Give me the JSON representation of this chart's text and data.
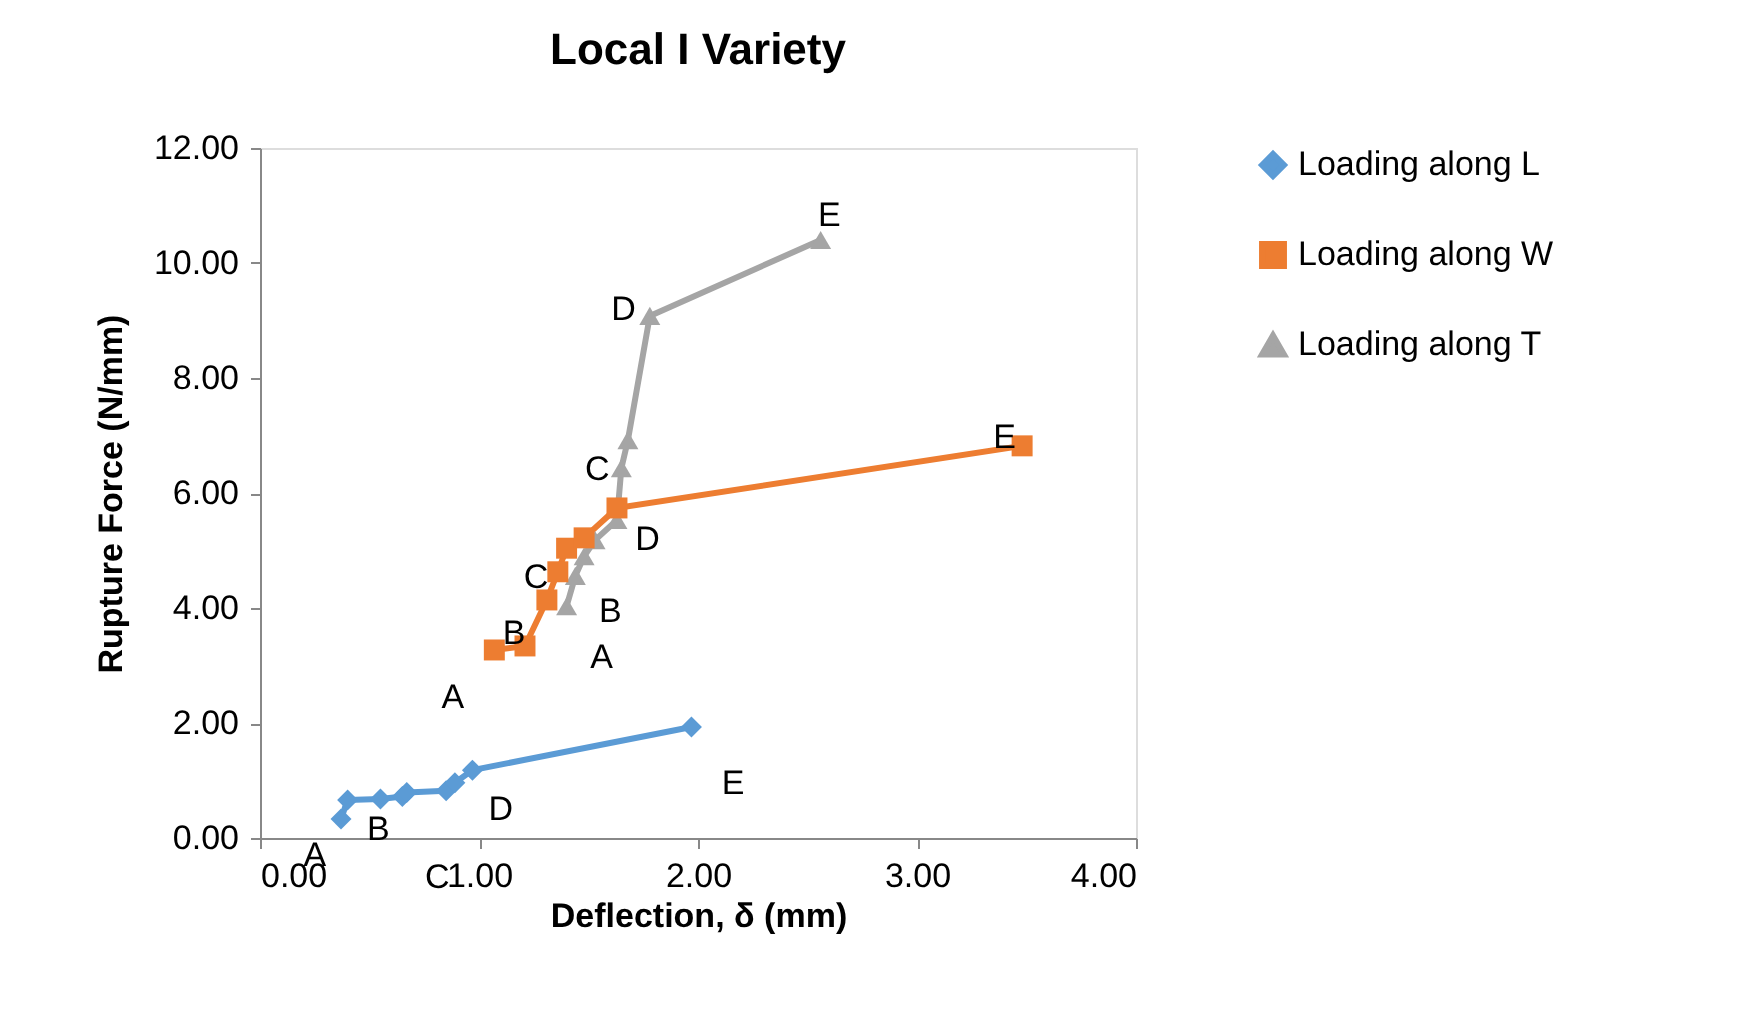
{
  "chart_data": {
    "type": "line",
    "title": "Local I Variety",
    "xlabel": "Deflection, δ (mm)",
    "ylabel": "Rupture Force (N/mm)",
    "xlim": [
      0,
      4
    ],
    "ylim": [
      0,
      12
    ],
    "xticks": [
      {
        "value": 0,
        "label": "0.00"
      },
      {
        "value": 1,
        "label": "1.00"
      },
      {
        "value": 2,
        "label": "2.00"
      },
      {
        "value": 3,
        "label": "3.00"
      },
      {
        "value": 4,
        "label": "4.00"
      }
    ],
    "yticks": [
      {
        "value": 0,
        "label": "0.00"
      },
      {
        "value": 2,
        "label": "2.00"
      },
      {
        "value": 4,
        "label": "4.00"
      },
      {
        "value": 6,
        "label": "6.00"
      },
      {
        "value": 8,
        "label": "8.00"
      },
      {
        "value": 10,
        "label": "10.00"
      },
      {
        "value": 12,
        "label": "12.00"
      }
    ],
    "grid": false,
    "legend": "right",
    "line_style": "solid",
    "series": [
      {
        "name": "Loading along L",
        "color": "#5b9bd5",
        "marker": "diamond",
        "x": [
          0.37,
          0.4,
          0.55,
          0.65,
          0.67,
          0.85,
          0.89,
          0.97,
          1.97
        ],
        "values": [
          0.33,
          0.66,
          0.68,
          0.72,
          0.79,
          0.82,
          0.96,
          1.18,
          1.93
        ]
      },
      {
        "name": "Loading along W",
        "color": "#ed7d31",
        "marker": "square",
        "x": [
          1.07,
          1.21,
          1.31,
          1.36,
          1.4,
          1.48,
          1.63,
          3.48
        ],
        "values": [
          3.27,
          3.34,
          4.14,
          4.63,
          5.04,
          5.22,
          5.74,
          6.82
        ]
      },
      {
        "name": "Loading along T",
        "color": "#a5a5a5",
        "marker": "triangle",
        "x": [
          1.4,
          1.44,
          1.48,
          1.53,
          1.63,
          1.65,
          1.68,
          1.78,
          2.56
        ],
        "values": [
          4.03,
          4.56,
          4.9,
          5.18,
          5.53,
          6.43,
          6.92,
          9.08,
          10.4
        ]
      }
    ],
    "annotations": [
      "A",
      "B",
      "C",
      "D",
      "E",
      "A",
      "B",
      "C",
      "D",
      "E",
      "A",
      "B",
      "C",
      "D",
      "E"
    ]
  }
}
